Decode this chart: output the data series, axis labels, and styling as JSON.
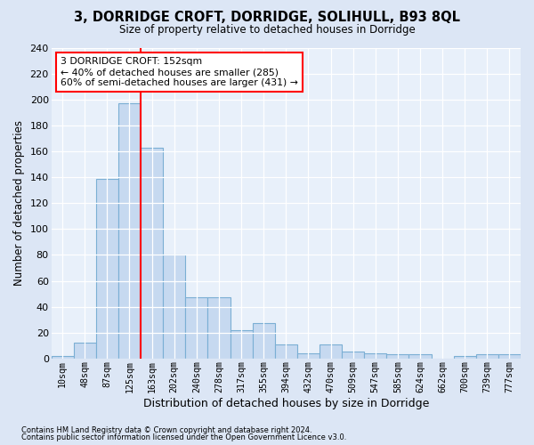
{
  "title1": "3, DORRIDGE CROFT, DORRIDGE, SOLIHULL, B93 8QL",
  "title2": "Size of property relative to detached houses in Dorridge",
  "xlabel": "Distribution of detached houses by size in Dorridge",
  "ylabel": "Number of detached properties",
  "bar_labels": [
    "10sqm",
    "48sqm",
    "87sqm",
    "125sqm",
    "163sqm",
    "202sqm",
    "240sqm",
    "278sqm",
    "317sqm",
    "355sqm",
    "394sqm",
    "432sqm",
    "470sqm",
    "509sqm",
    "547sqm",
    "585sqm",
    "624sqm",
    "662sqm",
    "700sqm",
    "739sqm",
    "777sqm"
  ],
  "bar_heights": [
    2,
    12,
    139,
    197,
    163,
    80,
    47,
    47,
    22,
    27,
    11,
    4,
    11,
    5,
    4,
    3,
    3,
    0,
    2,
    3,
    3
  ],
  "bar_color": "#c6d9f0",
  "bar_edgecolor": "#7bafd4",
  "vline_x_index": 3.5,
  "vline_color": "red",
  "annotation_text": "3 DORRIDGE CROFT: 152sqm\n← 40% of detached houses are smaller (285)\n60% of semi-detached houses are larger (431) →",
  "annotation_box_edgecolor": "red",
  "ylim": [
    0,
    240
  ],
  "yticks": [
    0,
    20,
    40,
    60,
    80,
    100,
    120,
    140,
    160,
    180,
    200,
    220,
    240
  ],
  "footnote1": "Contains HM Land Registry data © Crown copyright and database right 2024.",
  "footnote2": "Contains public sector information licensed under the Open Government Licence v3.0.",
  "background_color": "#dce6f5",
  "plot_background": "#e8f0fa",
  "grid_color": "#ffffff"
}
